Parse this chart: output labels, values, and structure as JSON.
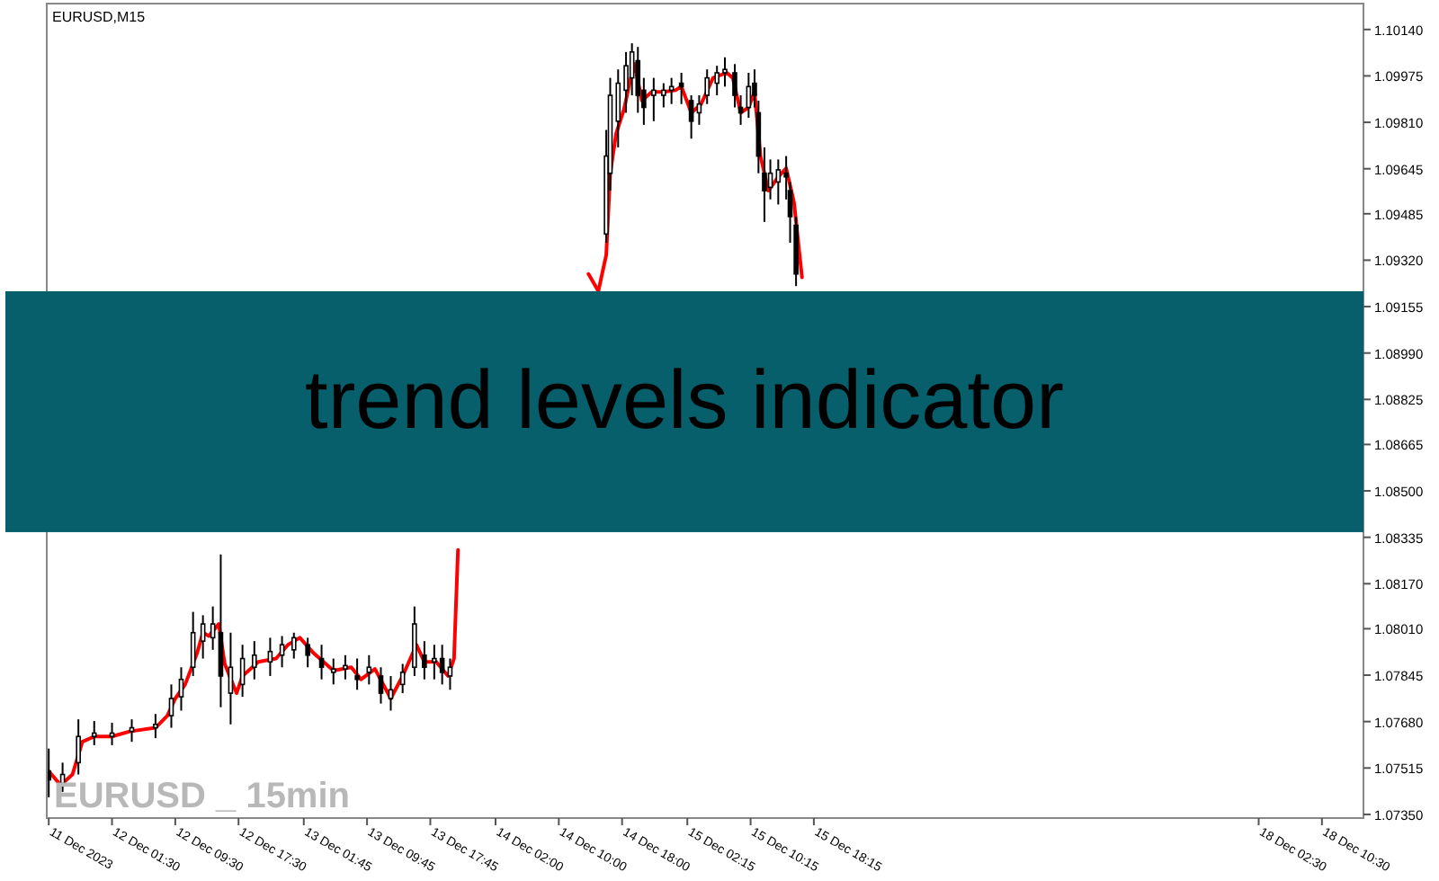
{
  "chart_data": {
    "type": "candlestick",
    "title": "trend levels indicator",
    "subtitle": "EURUSD,M15",
    "annotations": [
      "EURUSD _ 15min"
    ],
    "xlim": [
      "2023-12-11T17:15",
      "2023-12-18T15:45"
    ],
    "ylim": [
      1.07337,
      1.10232
    ],
    "xticks": [
      {
        "value": "2023-12-11T17:30",
        "label": "11 Dec 2023"
      },
      {
        "value": "2023-12-12T01:30",
        "label": "12 Dec 01:30"
      },
      {
        "value": "2023-12-12T09:30",
        "label": "12 Dec 09:30"
      },
      {
        "value": "2023-12-12T17:30",
        "label": "12 Dec 17:30"
      },
      {
        "value": "2023-12-13T01:45",
        "label": "13 Dec 01:45"
      },
      {
        "value": "2023-12-13T09:45",
        "label": "13 Dec 09:45"
      },
      {
        "value": "2023-12-13T17:45",
        "label": "13 Dec 17:45"
      },
      {
        "value": "2023-12-14T02:00",
        "label": "14 Dec 02:00"
      },
      {
        "value": "2023-12-14T10:00",
        "label": "14 Dec 10:00"
      },
      {
        "value": "2023-12-14T18:00",
        "label": "14 Dec 18:00"
      },
      {
        "value": "2023-12-15T02:15",
        "label": "15 Dec 02:15"
      },
      {
        "value": "2023-12-15T10:15",
        "label": "15 Dec 10:15"
      },
      {
        "value": "2023-12-15T18:15",
        "label": "15 Dec 18:15"
      },
      {
        "value": "2023-12-18T02:30",
        "label": "18 Dec 02:30"
      },
      {
        "value": "2023-12-18T10:30",
        "label": "18 Dec 10:30"
      }
    ],
    "yticks": [
      {
        "value": 1.1014,
        "label": "1.10140"
      },
      {
        "value": 1.09975,
        "label": "1.09975"
      },
      {
        "value": 1.0981,
        "label": "1.09810"
      },
      {
        "value": 1.09645,
        "label": "1.09645"
      },
      {
        "value": 1.09485,
        "label": "1.09485"
      },
      {
        "value": 1.0932,
        "label": "1.09320"
      },
      {
        "value": 1.09155,
        "label": "1.09155"
      },
      {
        "value": 1.0899,
        "label": "1.08990"
      },
      {
        "value": 1.08825,
        "label": "1.08825"
      },
      {
        "value": 1.08665,
        "label": "1.08665"
      },
      {
        "value": 1.085,
        "label": "1.08500"
      },
      {
        "value": 1.08335,
        "label": "1.08335"
      },
      {
        "value": 1.0817,
        "label": "1.08170"
      },
      {
        "value": 1.0801,
        "label": "1.08010"
      },
      {
        "value": 1.07845,
        "label": "1.07845"
      },
      {
        "value": 1.0768,
        "label": "1.07680"
      },
      {
        "value": 1.07515,
        "label": "1.07515"
      },
      {
        "value": 1.0735,
        "label": "1.07350"
      }
    ],
    "series": [
      {
        "color": "#000000",
        "x": [
          "2023-12-11T17:30",
          "2023-12-11T19:15",
          "2023-12-11T21:15",
          "2023-12-11T23:15",
          "2023-12-12T01:30",
          "2023-12-12T04:00",
          "2023-12-12T07:00",
          "2023-12-12T09:00",
          "2023-12-12T10:15",
          "2023-12-12T11:45",
          "2023-12-12T13:00",
          "2023-12-12T14:15",
          "2023-12-12T15:15",
          "2023-12-12T16:30",
          "2023-12-12T18:00",
          "2023-12-12T19:30",
          "2023-12-12T21:30",
          "2023-12-12T23:00",
          "2023-12-13T00:30",
          "2023-12-13T02:15",
          "2023-12-13T04:00",
          "2023-12-13T05:30",
          "2023-12-13T07:00",
          "2023-12-13T08:30",
          "2023-12-13T10:00",
          "2023-12-13T11:30",
          "2023-12-13T12:45",
          "2023-12-13T14:15",
          "2023-12-13T15:45",
          "2023-12-13T17:00",
          "2023-12-13T18:15",
          "2023-12-13T19:15",
          "2023-12-13T20:15",
          "2023-12-14T16:00",
          "2023-12-14T16:30",
          "2023-12-14T17:30",
          "2023-12-14T18:30",
          "2023-12-14T19:15",
          "2023-12-14T20:00",
          "2023-12-14T20:45",
          "2023-12-14T22:00",
          "2023-12-14T23:15",
          "2023-12-15T00:15",
          "2023-12-15T01:30",
          "2023-12-15T02:45",
          "2023-12-15T03:45",
          "2023-12-15T04:45",
          "2023-12-15T06:00",
          "2023-12-15T07:00",
          "2023-12-15T08:15",
          "2023-12-15T09:00",
          "2023-12-15T10:00",
          "2023-12-15T10:45",
          "2023-12-15T11:15",
          "2023-12-15T12:00",
          "2023-12-15T12:45",
          "2023-12-15T13:45",
          "2023-12-15T14:45",
          "2023-12-15T15:15",
          "2023-12-15T16:00"
        ],
        "ohlc": [
          [
            1.07504,
            1.07584,
            1.07411,
            1.07473
          ],
          [
            1.0746,
            1.07534,
            1.0743,
            1.07492
          ],
          [
            1.07534,
            1.07688,
            1.07492,
            1.07627
          ],
          [
            1.07627,
            1.07682,
            1.07596,
            1.07639
          ],
          [
            1.07627,
            1.07676,
            1.07596,
            1.07639
          ],
          [
            1.07645,
            1.07688,
            1.07608,
            1.07658
          ],
          [
            1.07658,
            1.07707,
            1.07621,
            1.0767
          ],
          [
            1.07701,
            1.07812,
            1.07658,
            1.07762
          ],
          [
            1.07768,
            1.07873,
            1.07719,
            1.0783
          ],
          [
            1.07873,
            1.0807,
            1.07842,
            1.07996
          ],
          [
            1.07966,
            1.08058,
            1.07904,
            1.08027
          ],
          [
            1.07978,
            1.08089,
            1.07935,
            1.08027
          ],
          [
            1.07996,
            1.08274,
            1.07731,
            1.07842
          ],
          [
            1.07781,
            1.07996,
            1.0767,
            1.07873
          ],
          [
            1.07812,
            1.07953,
            1.07768,
            1.07904
          ],
          [
            1.07873,
            1.07966,
            1.0783,
            1.07916
          ],
          [
            1.07892,
            1.07978,
            1.07842,
            1.07929
          ],
          [
            1.07916,
            1.07984,
            1.07873,
            1.07953
          ],
          [
            1.07935,
            1.07996,
            1.07904,
            1.07978
          ],
          [
            1.07953,
            1.07978,
            1.07873,
            1.07916
          ],
          [
            1.07904,
            1.07953,
            1.0783,
            1.07873
          ],
          [
            1.07855,
            1.07904,
            1.07812,
            1.07867
          ],
          [
            1.07867,
            1.07916,
            1.0783,
            1.07879
          ],
          [
            1.07842,
            1.07904,
            1.07793,
            1.0783
          ],
          [
            1.07855,
            1.07916,
            1.07812,
            1.07873
          ],
          [
            1.07842,
            1.07873,
            1.07744,
            1.07781
          ],
          [
            1.07762,
            1.07842,
            1.07719,
            1.07793
          ],
          [
            1.07812,
            1.07885,
            1.07781,
            1.07855
          ],
          [
            1.07873,
            1.08089,
            1.07842,
            1.08027
          ],
          [
            1.07916,
            1.07966,
            1.0783,
            1.07873
          ],
          [
            1.07892,
            1.07953,
            1.0783,
            1.07904
          ],
          [
            1.07904,
            1.07953,
            1.07812,
            1.07855
          ],
          [
            1.07842,
            1.07904,
            1.07793,
            1.07873
          ],
          [
            1.09413,
            1.09783,
            1.09382,
            1.0969
          ],
          [
            1.09629,
            1.09968,
            1.09567,
            1.09906
          ],
          [
            1.09814,
            1.09998,
            1.09721,
            1.09949
          ],
          [
            1.09924,
            1.1006,
            1.09844,
            1.10011
          ],
          [
            1.09968,
            1.10091,
            1.09906,
            1.1006
          ],
          [
            1.10029,
            1.10078,
            1.09844,
            1.09906
          ],
          [
            1.09924,
            1.09968,
            1.09801,
            1.09863
          ],
          [
            1.09906,
            1.09968,
            1.09814,
            1.09924
          ],
          [
            1.09906,
            1.09949,
            1.09863,
            1.09924
          ],
          [
            1.09924,
            1.09968,
            1.09875,
            1.09937
          ],
          [
            1.09949,
            1.09986,
            1.09875,
            1.09937
          ],
          [
            1.09887,
            1.09906,
            1.09752,
            1.09814
          ],
          [
            1.09844,
            1.09906,
            1.09801,
            1.09875
          ],
          [
            1.09906,
            1.09998,
            1.09875,
            1.09968
          ],
          [
            1.09949,
            1.10011,
            1.09906,
            1.09986
          ],
          [
            1.09986,
            1.10041,
            1.09937,
            1.09998
          ],
          [
            1.09986,
            1.10017,
            1.09863,
            1.09906
          ],
          [
            1.09863,
            1.09906,
            1.09801,
            1.09844
          ],
          [
            1.09863,
            1.09986,
            1.09826,
            1.09937
          ],
          [
            1.09949,
            1.09998,
            1.09863,
            1.09906
          ],
          [
            1.09844,
            1.09887,
            1.09629,
            1.0969
          ],
          [
            1.09629,
            1.09721,
            1.09456,
            1.09567
          ],
          [
            1.09579,
            1.09678,
            1.09536,
            1.09629
          ],
          [
            1.09598,
            1.09678,
            1.09518,
            1.09641
          ],
          [
            1.09629,
            1.0969,
            1.09536,
            1.09616
          ],
          [
            1.09567,
            1.09598,
            1.09382,
            1.09475
          ],
          [
            1.09444,
            1.09475,
            1.09228,
            1.09271
          ]
        ]
      },
      {
        "type": "line",
        "color": "#ff0000",
        "x": [
          "2023-12-11T17:30",
          "2023-12-11T19:00",
          "2023-12-11T20:30",
          "2023-12-11T21:45",
          "2023-12-11T23:15",
          "2023-12-12T01:30",
          "2023-12-12T03:45",
          "2023-12-12T07:00",
          "2023-12-12T08:30",
          "2023-12-12T09:30",
          "2023-12-12T10:45",
          "2023-12-12T12:15",
          "2023-12-12T13:00",
          "2023-12-12T13:45",
          "2023-12-12T15:00",
          "2023-12-12T15:45",
          "2023-12-12T17:15",
          "2023-12-12T18:00",
          "2023-12-12T20:00",
          "2023-12-12T22:15",
          "2023-12-12T23:45",
          "2023-12-13T01:15",
          "2023-12-13T03:00",
          "2023-12-13T05:30",
          "2023-12-13T07:45",
          "2023-12-13T09:00",
          "2023-12-13T10:45",
          "2023-12-13T12:45",
          "2023-12-13T14:15",
          "2023-12-13T16:00",
          "2023-12-13T17:00",
          "2023-12-13T18:30",
          "2023-12-13T20:00",
          "2023-12-13T20:45",
          "2023-12-13T21:15",
          "2023-12-14T06:00",
          "2023-12-14T13:45",
          "2023-12-14T15:00",
          "2023-12-14T16:00",
          "2023-12-14T16:30",
          "2023-12-14T17:15",
          "2023-12-14T18:15",
          "2023-12-14T19:00",
          "2023-12-14T19:35",
          "2023-12-14T20:30",
          "2023-12-14T21:45",
          "2023-12-14T23:15",
          "2023-12-15T00:45",
          "2023-12-15T01:30",
          "2023-12-15T02:45",
          "2023-12-15T04:00",
          "2023-12-15T05:30",
          "2023-12-15T07:15",
          "2023-12-15T08:00",
          "2023-12-15T09:00",
          "2023-12-15T10:00",
          "2023-12-15T10:45",
          "2023-12-15T11:30",
          "2023-12-15T12:30",
          "2023-12-15T13:45",
          "2023-12-15T14:45",
          "2023-12-15T15:45",
          "2023-12-15T16:45"
        ],
        "values": [
          1.07504,
          1.07454,
          1.07492,
          1.07608,
          1.07627,
          1.07627,
          1.07645,
          1.07658,
          1.07701,
          1.07762,
          1.07812,
          1.07923,
          1.07996,
          1.07984,
          1.08027,
          1.07885,
          1.07781,
          1.07842,
          1.07892,
          1.07904,
          1.07953,
          1.07978,
          1.07923,
          1.07861,
          1.07873,
          1.0783,
          1.07867,
          1.07762,
          1.07842,
          1.07953,
          1.07892,
          1.07892,
          1.07842,
          1.07904,
          1.0829,
          null,
          1.09271,
          1.0921,
          1.09339,
          1.09629,
          1.0977,
          1.09857,
          1.09955,
          1.10017,
          1.09887,
          1.09918,
          1.09918,
          1.09924,
          1.09937,
          1.09844,
          1.09875,
          1.09968,
          1.09986,
          1.09968,
          1.09844,
          1.09863,
          1.09918,
          1.0969,
          1.09567,
          1.09616,
          1.09647,
          1.09524,
          1.09259
        ]
      }
    ]
  }
}
